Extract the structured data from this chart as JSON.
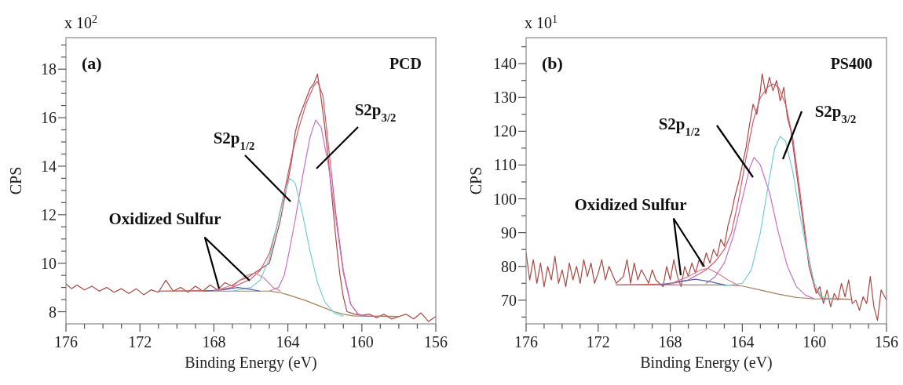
{
  "chart_data": [
    {
      "type": "line",
      "xlabel": "Binding Energy (eV)",
      "ylabel": "CPS",
      "xlim": [
        176,
        156
      ],
      "ylim": [
        7.5,
        19.3
      ],
      "xticks": [
        176,
        {
          "value": 175,
          "label": null
        },
        {
          "value": 174,
          "label": null
        },
        {
          "value": 173,
          "label": null
        },
        172,
        {
          "value": 171,
          "label": null
        },
        {
          "value": 170,
          "label": null
        },
        {
          "value": 169,
          "label": null
        },
        168,
        {
          "value": 167,
          "label": null
        },
        {
          "value": 166,
          "label": null
        },
        {
          "value": 165,
          "label": null
        },
        164,
        {
          "value": 163,
          "label": null
        },
        {
          "value": 162,
          "label": null
        },
        {
          "value": 161,
          "label": null
        },
        160,
        {
          "value": 159,
          "label": null
        },
        {
          "value": 158,
          "label": null
        },
        {
          "value": 157,
          "label": null
        },
        156
      ],
      "yticks": [
        8,
        {
          "value": 8.5,
          "label": null
        },
        {
          "value": 9,
          "label": null
        },
        {
          "value": 9.5,
          "label": null
        },
        10,
        {
          "value": 10.5,
          "label": null
        },
        {
          "value": 11,
          "label": null
        },
        {
          "value": 11.5,
          "label": null
        },
        12,
        {
          "value": 12.5,
          "label": null
        },
        {
          "value": 13,
          "label": null
        },
        {
          "value": 13.5,
          "label": null
        },
        14,
        {
          "value": 14.5,
          "label": null
        },
        {
          "value": 15,
          "label": null
        },
        {
          "value": 15.5,
          "label": null
        },
        16,
        {
          "value": 16.5,
          "label": null
        },
        {
          "value": 17,
          "label": null
        },
        {
          "value": 17.5,
          "label": null
        },
        18,
        {
          "value": 18.5,
          "label": null
        },
        {
          "value": 19,
          "label": null
        }
      ],
      "series": [
        {
          "color": "#a84a44",
          "x": [
            176,
            175.7,
            175.4,
            175,
            174.6,
            174.2,
            173.8,
            173.4,
            173,
            172.6,
            172.2,
            171.8,
            171.4,
            171,
            170.6,
            170.2,
            169.8,
            169.4,
            169,
            168.6,
            168.2,
            167.8,
            167.4,
            167,
            166.6,
            166.2,
            165.8,
            165.4,
            165,
            164.8,
            164.6,
            164.4,
            164.2,
            164,
            163.8,
            163.6,
            163.4,
            163.2,
            163,
            162.8,
            162.6,
            162.4,
            162.2,
            162,
            161.8,
            161.6,
            161.4,
            161.2,
            161,
            160.8,
            160.4,
            160,
            159.6,
            159.2,
            158.8,
            158.4,
            158,
            157.6,
            157.2,
            156.8,
            156.4,
            156
          ],
          "values": [
            9.15,
            8.95,
            9.1,
            8.9,
            9.05,
            8.85,
            9.0,
            8.8,
            8.95,
            8.75,
            8.95,
            8.7,
            8.9,
            8.8,
            9.3,
            8.85,
            9.0,
            8.8,
            9.05,
            8.85,
            9.1,
            8.9,
            9.2,
            9.05,
            9.3,
            9.4,
            9.6,
            9.8,
            10.0,
            10.6,
            11.2,
            11.8,
            12.6,
            13.4,
            14.2,
            15.4,
            16.0,
            16.4,
            16.8,
            17.2,
            17.4,
            17.8,
            16.8,
            15.6,
            14.2,
            12.6,
            11.0,
            9.6,
            8.6,
            8.0,
            7.9,
            7.85,
            7.9,
            7.75,
            7.9,
            7.7,
            7.8,
            7.9,
            7.7,
            7.95,
            7.6,
            7.8
          ]
        },
        {
          "color": "#d35a6e",
          "x": [
            171,
            168,
            167,
            166,
            165.5,
            165,
            164.6,
            164.2,
            163.8,
            163.4,
            163,
            162.6,
            162.4,
            162.1,
            161.8,
            161.4,
            161,
            160.6,
            160.2,
            159.8,
            158
          ],
          "values": [
            8.85,
            8.88,
            9.0,
            9.35,
            9.7,
            10.4,
            11.5,
            12.9,
            14.4,
            15.6,
            16.6,
            17.3,
            17.5,
            16.9,
            14.8,
            12.0,
            9.7,
            8.3,
            7.9,
            7.82,
            7.8
          ]
        },
        {
          "color": "#a3805c",
          "x": [
            171,
            165,
            164.5,
            164,
            163,
            162,
            161.5,
            161,
            160.5,
            159.5,
            158
          ],
          "values": [
            8.85,
            8.85,
            8.8,
            8.7,
            8.45,
            8.15,
            8.0,
            7.9,
            7.83,
            7.81,
            7.8
          ]
        },
        {
          "color": "#c472c8",
          "x": [
            165,
            164.5,
            164.2,
            164,
            163.6,
            163.2,
            162.8,
            162.5,
            162.2,
            161.8,
            161.4,
            161,
            160.6,
            160.2,
            159.8
          ],
          "values": [
            8.85,
            9.0,
            9.5,
            10.2,
            11.8,
            13.6,
            15.2,
            15.9,
            15.6,
            14.0,
            11.8,
            9.6,
            8.3,
            7.9,
            7.82
          ]
        },
        {
          "color": "#74cdd6",
          "x": [
            167,
            166,
            165.5,
            165,
            164.6,
            164.2,
            163.9,
            163.6,
            163.2,
            162.8,
            162.4,
            162,
            161.5,
            161
          ],
          "values": [
            8.85,
            9.0,
            9.3,
            10.2,
            11.5,
            12.8,
            13.5,
            13.3,
            12.0,
            10.5,
            9.2,
            8.4,
            7.95,
            7.82
          ]
        },
        {
          "color": "#5462b4",
          "x": [
            168.5,
            167.5,
            166.7,
            166,
            165.5
          ],
          "values": [
            8.85,
            8.9,
            9.0,
            8.92,
            8.85
          ]
        },
        {
          "color": "#d4849a",
          "x": [
            168,
            167,
            166.2,
            165.8,
            165.3,
            164.8,
            164.4
          ],
          "values": [
            8.85,
            9.1,
            9.5,
            9.6,
            9.4,
            9.0,
            8.85
          ]
        }
      ],
      "annotations": [
        "(a)",
        "PCD",
        "x 10$^{2}$",
        "S2p$_{1/2}$",
        "S2p$_{3/2}$",
        "Oxidized Sulfur"
      ]
    },
    {
      "type": "line",
      "xlabel": "Binding Energy (eV)",
      "ylabel": "CPS",
      "xlim": [
        176,
        156
      ],
      "ylim": [
        63,
        147.7
      ],
      "xticks": [
        176,
        {
          "value": 175,
          "label": null
        },
        {
          "value": 174,
          "label": null
        },
        {
          "value": 173,
          "label": null
        },
        172,
        {
          "value": 171,
          "label": null
        },
        {
          "value": 170,
          "label": null
        },
        {
          "value": 169,
          "label": null
        },
        168,
        {
          "value": 167,
          "label": null
        },
        {
          "value": 166,
          "label": null
        },
        {
          "value": 165,
          "label": null
        },
        164,
        {
          "value": 163,
          "label": null
        },
        {
          "value": 162,
          "label": null
        },
        {
          "value": 161,
          "label": null
        },
        160,
        {
          "value": 159,
          "label": null
        },
        {
          "value": 158,
          "label": null
        },
        {
          "value": 157,
          "label": null
        },
        156
      ],
      "yticks": [
        {
          "value": 65,
          "label": null
        },
        70,
        {
          "value": 75,
          "label": null
        },
        80,
        {
          "value": 85,
          "label": null
        },
        90,
        {
          "value": 95,
          "label": null
        },
        100,
        {
          "value": 105,
          "label": null
        },
        110,
        {
          "value": 115,
          "label": null
        },
        120,
        {
          "value": 125,
          "label": null
        },
        130,
        {
          "value": 135,
          "label": null
        },
        140,
        {
          "value": 145,
          "label": null
        }
      ],
      "series": [
        {
          "color": "#a84a44",
          "x": [
            176,
            175.8,
            175.6,
            175.4,
            175.2,
            175,
            174.8,
            174.6,
            174.4,
            174.2,
            174,
            173.8,
            173.6,
            173.4,
            173.2,
            173,
            172.8,
            172.6,
            172.4,
            172.2,
            172,
            171.8,
            171.6,
            171.4,
            171,
            170.6,
            170.4,
            170.2,
            170,
            169.8,
            169.6,
            169.2,
            169,
            168.8,
            168.4,
            168.2,
            168,
            167.8,
            167.6,
            167.4,
            167.2,
            167,
            166.8,
            166.6,
            166.4,
            166.2,
            166,
            165.8,
            165.6,
            165.4,
            165.2,
            165,
            164.8,
            164.6,
            164.4,
            164.2,
            164,
            163.8,
            163.6,
            163.4,
            163.2,
            163,
            162.9,
            162.7,
            162.5,
            162.3,
            162.1,
            161.9,
            161.7,
            161.5,
            161.3,
            161.1,
            160.9,
            160.7,
            160.5,
            160.3,
            160.1,
            159.9,
            159.7,
            159.5,
            159.3,
            159.1,
            158.9,
            158.7,
            158.5,
            158.3,
            158.1,
            157.9,
            157.7,
            157.5,
            157.3,
            157.1,
            156.9,
            156.7,
            156.5,
            156.3,
            156.1,
            156
          ],
          "values": [
            84,
            76,
            82,
            75,
            81,
            74,
            80,
            76,
            83,
            75,
            79,
            74,
            81,
            76,
            80,
            75,
            82,
            77,
            81,
            75,
            78,
            82,
            76,
            80,
            75,
            77,
            82,
            75,
            81,
            76,
            79,
            75,
            79,
            76,
            74,
            80,
            76,
            82,
            77,
            74,
            80,
            77,
            81,
            78,
            82,
            80,
            84,
            81,
            85,
            83,
            88,
            86,
            92,
            96,
            101,
            105,
            110,
            115,
            122,
            128,
            125,
            132,
            137,
            131,
            136,
            132,
            135,
            129,
            133,
            124,
            120,
            112,
            104,
            96,
            88,
            80,
            76,
            72,
            74,
            69,
            73,
            68,
            72,
            70,
            75,
            71,
            76,
            69,
            70,
            67,
            71,
            69,
            77,
            68,
            64,
            73,
            71,
            70
          ]
        },
        {
          "color": "#d35a6e",
          "x": [
            171,
            168,
            167,
            166,
            165.5,
            165,
            164.6,
            164.2,
            163.8,
            163.4,
            163,
            162.6,
            162.3,
            162,
            161.6,
            161.2,
            160.8,
            160.4,
            160,
            159.6,
            158
          ],
          "values": [
            74.5,
            74.8,
            76,
            79,
            81.5,
            85,
            90,
            100,
            112,
            123,
            130,
            133,
            134,
            133,
            128,
            118,
            102,
            85,
            74,
            70.5,
            70.3
          ]
        },
        {
          "color": "#a3805c",
          "x": [
            171,
            165,
            164,
            163,
            162,
            161,
            160,
            158
          ],
          "values": [
            74.5,
            74.5,
            74.2,
            73,
            71.8,
            70.8,
            70.4,
            70.3
          ]
        },
        {
          "color": "#c472c8",
          "x": [
            166,
            165.5,
            165,
            164.5,
            164,
            163.6,
            163.35,
            163,
            162.5,
            162,
            161.5,
            161,
            160.5,
            160
          ],
          "values": [
            75,
            77,
            81,
            89,
            100,
            109,
            112.3,
            110,
            102,
            90,
            80,
            74,
            71.5,
            70.4
          ]
        },
        {
          "color": "#74cdd6",
          "x": [
            165,
            164,
            163.5,
            163,
            162.5,
            162.2,
            161.9,
            161.6,
            161.2,
            160.8,
            160.4,
            160,
            159.6,
            159
          ],
          "values": [
            74.3,
            75,
            79,
            90,
            106,
            115,
            118.5,
            117,
            108,
            95,
            84,
            75,
            71,
            70.3
          ]
        },
        {
          "color": "#5462b4",
          "x": [
            168.5,
            167.5,
            166.6,
            165.8,
            165
          ],
          "values": [
            74.6,
            75.5,
            76.2,
            75.5,
            74.5
          ]
        },
        {
          "color": "#d4849a",
          "x": [
            168,
            167,
            166.3,
            165.9,
            165.4,
            164.8,
            164.2
          ],
          "values": [
            74.8,
            77,
            79,
            79.4,
            78,
            76,
            74.3
          ]
        }
      ],
      "annotations": [
        "(b)",
        "PS400",
        "x 10$^{1}$",
        "S2p$_{1/2}$",
        "S2p$_{3/2}$",
        "Oxidized Sulfur"
      ]
    }
  ]
}
